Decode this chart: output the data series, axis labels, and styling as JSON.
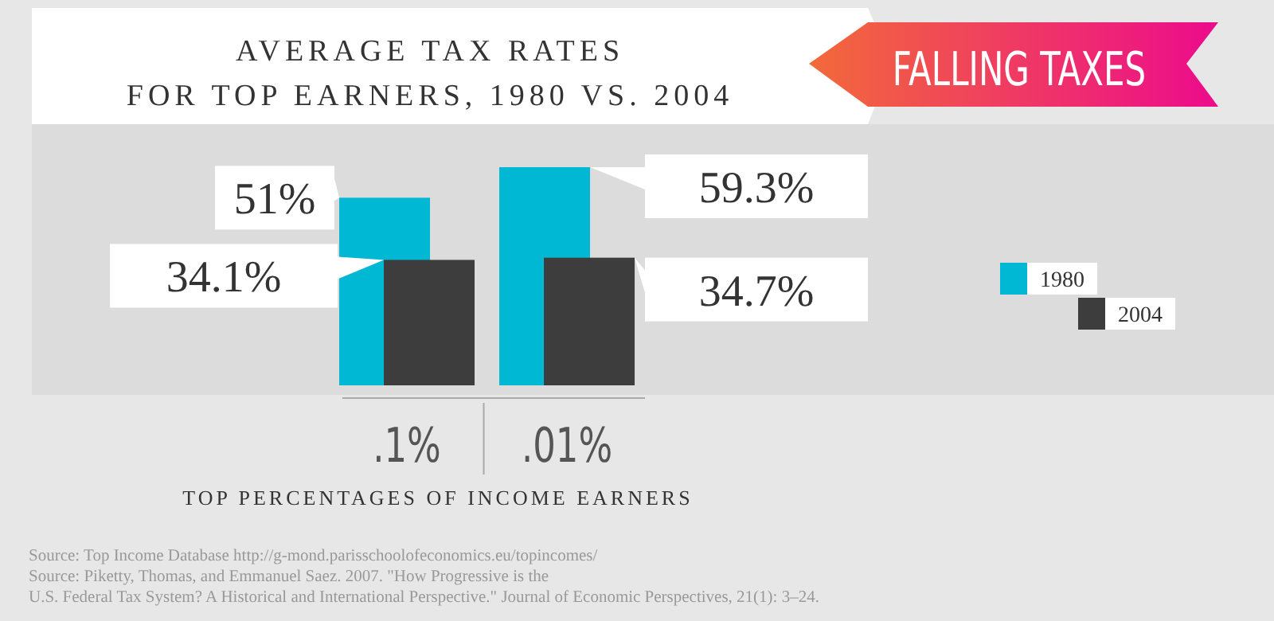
{
  "chart_data": {
    "type": "bar",
    "title": "AVERAGE TAX RATES\nFOR TOP EARNERS, 1980 VS. 2004",
    "subtitle": "FALLING TAXES",
    "xlabel": "TOP PERCENTAGES OF INCOME EARNERS",
    "categories": [
      ".1%",
      ".01%"
    ],
    "series": [
      {
        "name": "1980",
        "color": "#00b8d4",
        "values": [
          51,
          59.3
        ],
        "value_labels": [
          "51%",
          "59.3%"
        ]
      },
      {
        "name": "2004",
        "color": "#3d3d3d",
        "values": [
          34.1,
          34.7
        ],
        "value_labels": [
          "34.1%",
          "34.7%"
        ]
      }
    ],
    "legend": "right",
    "annotations": [
      "Source: Top Income Database http://g-mond.parisschoolofeconomics.eu/topincomes/",
      "Source: Piketty, Thomas, and Emmanuel Saez. 2007. \"How Progressive is the",
      "U.S. Federal Tax System? A Historical and International Perspective.\" Journal of Economic Perspectives, 21(1): 3–24."
    ]
  }
}
